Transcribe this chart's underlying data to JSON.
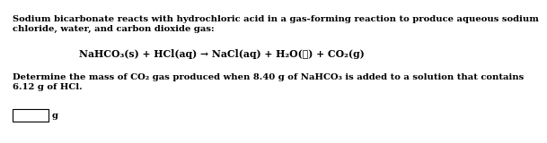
{
  "bg_color": "#ffffff",
  "text_color": "#000000",
  "para1_line1": "Sodium bicarbonate reacts with hydrochloric acid in a gas-forming reaction to produce aqueous sodium",
  "para1_line2": "chloride, water, and carbon dioxide gas:",
  "equation": "NaHCO₃(s) + HCl(aq) → NaCl(aq) + H₂O(ℓ) + CO₂(g)",
  "para2_line1": "Determine the mass of CO₂ gas produced when 8.40 g of NaHCO₃ is added to a solution that contains",
  "para2_line2": "6.12 g of HCl.",
  "unit": "g",
  "font_size_body": 7.2,
  "font_size_eq": 7.8
}
